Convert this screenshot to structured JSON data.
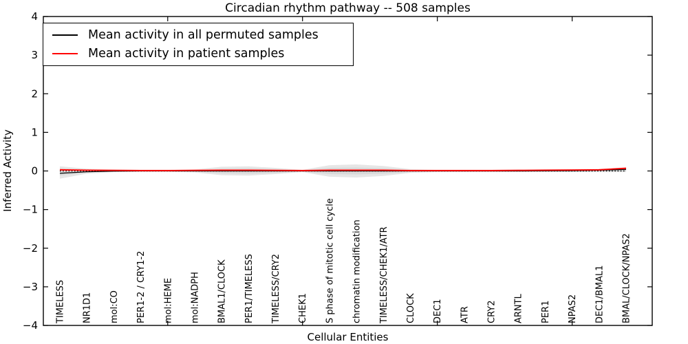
{
  "chart_data": {
    "type": "line",
    "title": "Circadian rhythm pathway -- 508 samples",
    "xlabel": "Cellular Entities",
    "ylabel": "Inferred Activity",
    "ylim": [
      -4,
      4
    ],
    "yticks": [
      4,
      3,
      2,
      1,
      0,
      -1,
      -2,
      -3,
      -4
    ],
    "grid": false,
    "legend": {
      "position": "upper left",
      "entries": [
        {
          "label": "Mean activity in all permuted samples",
          "color": "#000000"
        },
        {
          "label": "Mean activity in patient samples",
          "color": "#ff0000"
        }
      ]
    },
    "categories": [
      "TIMELESS",
      "NR1D1",
      "mol:CO",
      "PER1-2 / CRY1-2",
      "mol:HEME",
      "mol:NADPH",
      "BMAL1/CLOCK",
      "PER1/TIMELESS",
      "TIMELESS/CRY2",
      "CHEK1",
      "S phase of mitotic cell cycle",
      "chromatin modification",
      "TIMELESS/CHEK1/ATR",
      "CLOCK",
      "DEC1",
      "ATR",
      "CRY2",
      "ARNTL",
      "PER1",
      "NPAS2",
      "DEC1/BMAL1",
      "BMAL/CLOCK/NPAS2"
    ],
    "xtick_indices": [
      4,
      9,
      14,
      19
    ],
    "series": [
      {
        "name": "mean-permuted",
        "label": "Mean activity in all permuted samples",
        "color": "#000000",
        "style": "solid",
        "width": 1.3,
        "values": [
          -0.06,
          -0.02,
          -0.005,
          0,
          0,
          0,
          0,
          0,
          0,
          0,
          0,
          0,
          0,
          0,
          0,
          0,
          0,
          0,
          0.005,
          0.01,
          0.02,
          0.04
        ]
      },
      {
        "name": "zero-reference",
        "label": "",
        "color": "#000000",
        "style": "dotted",
        "width": 1.4,
        "values": [
          0,
          0,
          0,
          0,
          0,
          0,
          0,
          0,
          0,
          0,
          0,
          0,
          0,
          0,
          0,
          0,
          0,
          0,
          0,
          0,
          0,
          0
        ]
      },
      {
        "name": "mean-patient",
        "label": "Mean activity in patient samples",
        "color": "#ff0000",
        "style": "solid",
        "width": 1.8,
        "values": [
          0.03,
          0.02,
          0.015,
          0.01,
          0.01,
          0.015,
          0.02,
          0.02,
          0.015,
          0.01,
          0.02,
          0.02,
          0.02,
          0.01,
          0.01,
          0.01,
          0.01,
          0.015,
          0.02,
          0.025,
          0.03,
          0.07
        ]
      }
    ],
    "bands": [
      {
        "name": "permuted-range-outer",
        "color": "#e6e6e6",
        "upper": [
          0.12,
          0.06,
          0.03,
          0.02,
          0.02,
          0.04,
          0.11,
          0.12,
          0.08,
          0.03,
          0.15,
          0.17,
          0.13,
          0.05,
          0.03,
          0.03,
          0.03,
          0.03,
          0.03,
          0.03,
          0.04,
          0.08
        ],
        "lower": [
          -0.2,
          -0.07,
          -0.03,
          -0.02,
          -0.02,
          -0.04,
          -0.11,
          -0.12,
          -0.08,
          -0.03,
          -0.15,
          -0.17,
          -0.13,
          -0.05,
          -0.03,
          -0.03,
          -0.03,
          -0.03,
          -0.03,
          -0.03,
          -0.03,
          -0.03
        ]
      },
      {
        "name": "permuted-range-inner",
        "color": "#d8d8d8",
        "upper": [
          0.07,
          0.04,
          0.02,
          0.01,
          0.01,
          0.02,
          0.06,
          0.07,
          0.05,
          0.02,
          0.08,
          0.09,
          0.07,
          0.03,
          0.02,
          0.02,
          0.02,
          0.02,
          0.02,
          0.02,
          0.025,
          0.06
        ],
        "lower": [
          -0.12,
          -0.045,
          -0.02,
          -0.01,
          -0.01,
          -0.02,
          -0.06,
          -0.07,
          -0.05,
          -0.02,
          -0.08,
          -0.09,
          -0.07,
          -0.03,
          -0.02,
          -0.02,
          -0.02,
          -0.02,
          -0.02,
          -0.02,
          -0.02,
          -0.01
        ]
      },
      {
        "name": "patient-band",
        "color": "#ffbdbd",
        "upper": [
          0.052,
          0.042,
          0.037,
          0.032,
          0.032,
          0.037,
          0.042,
          0.042,
          0.037,
          0.032,
          0.042,
          0.042,
          0.042,
          0.032,
          0.032,
          0.032,
          0.032,
          0.037,
          0.042,
          0.047,
          0.052,
          0.092
        ],
        "lower": [
          0.008,
          -0.002,
          -0.007,
          -0.012,
          -0.012,
          -0.007,
          -0.002,
          -0.002,
          -0.007,
          -0.012,
          -0.002,
          -0.002,
          -0.002,
          -0.012,
          -0.012,
          -0.012,
          -0.012,
          -0.007,
          -0.002,
          0.003,
          0.008,
          0.048
        ]
      }
    ]
  }
}
